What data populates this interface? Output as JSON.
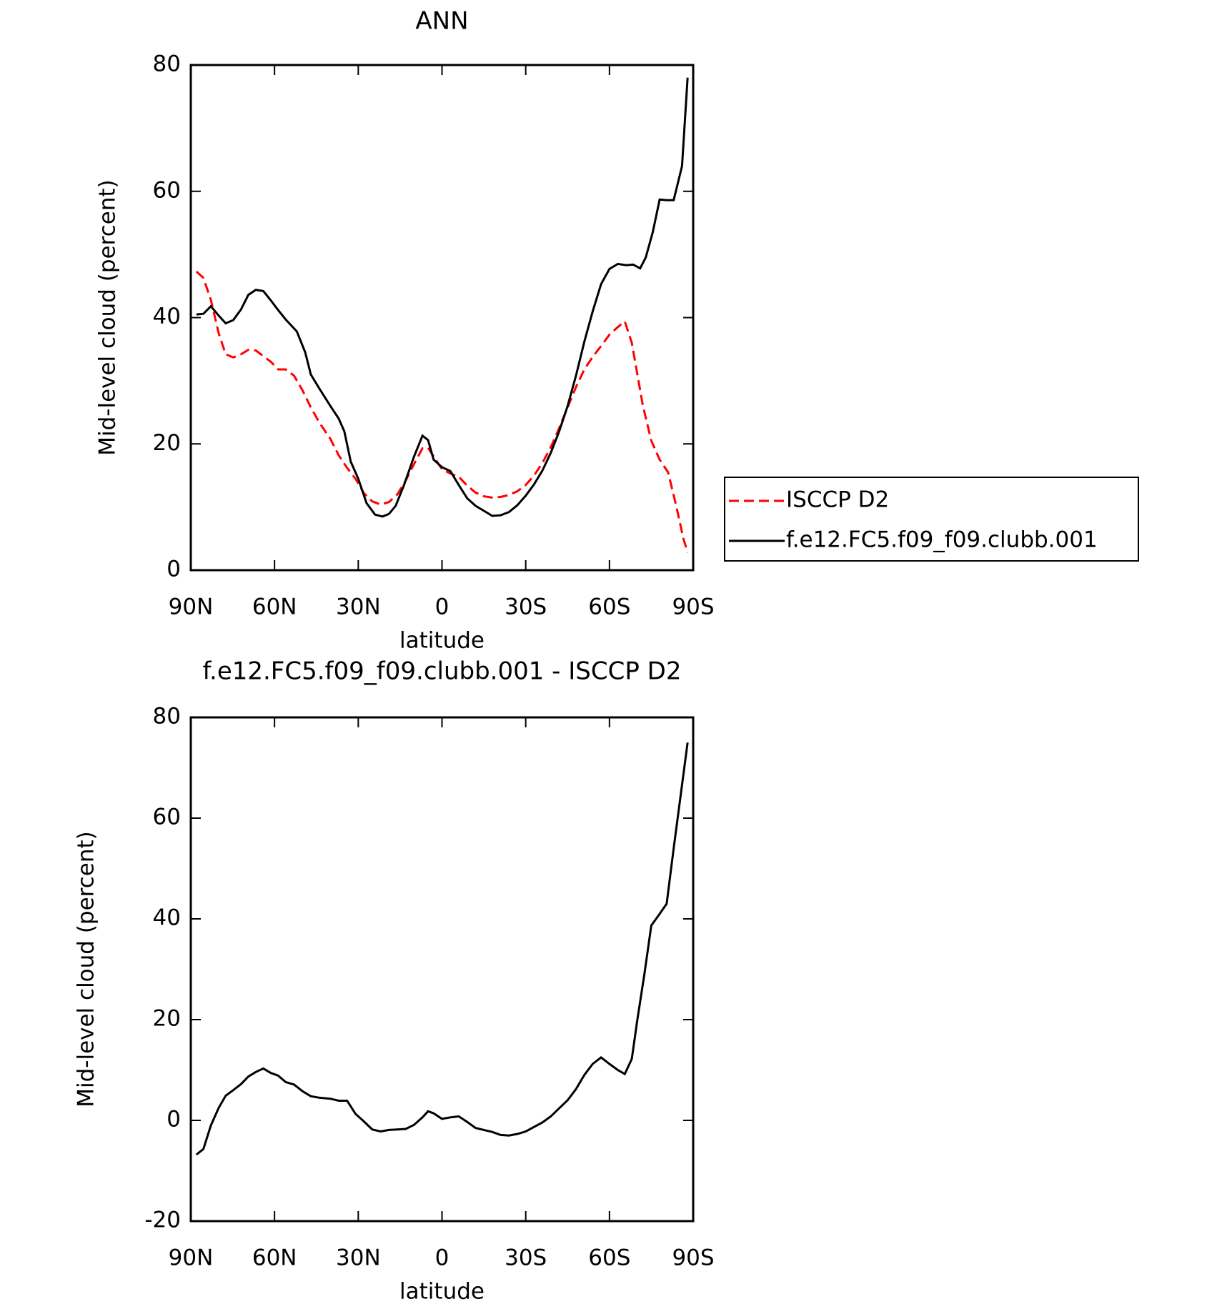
{
  "chart_data": [
    {
      "type": "line",
      "title": "ANN",
      "xlabel": "latitude",
      "ylabel": "Mid-level cloud (percent)",
      "xlim": [
        90,
        -90
      ],
      "xticks": [
        {
          "value": 90,
          "label": "90N"
        },
        {
          "value": 60,
          "label": "60N"
        },
        {
          "value": 30,
          "label": "30N"
        },
        0,
        {
          "value": -30,
          "label": "30S"
        },
        {
          "value": -60,
          "label": "60S"
        },
        {
          "value": -90,
          "label": "90S"
        }
      ],
      "ylim": [
        0,
        80
      ],
      "yticks": [
        0,
        20,
        40,
        60,
        80
      ],
      "legend": "right",
      "series": [
        {
          "name": "ISCCP D2",
          "color": "#ff0000",
          "dash": "dashed",
          "x": [
            88,
            85.5,
            82.8,
            80,
            77.5,
            74.8,
            72,
            69.4,
            66.7,
            64,
            61.3,
            58.7,
            56,
            53,
            50,
            47,
            44,
            40,
            37,
            34,
            31,
            28,
            25,
            22,
            19,
            16,
            13,
            10,
            7,
            5,
            3,
            0,
            -3,
            -6,
            -9,
            -12,
            -15,
            -18,
            -21,
            -24,
            -27,
            -30,
            -33,
            -36,
            -39,
            -42,
            -45,
            -48,
            -51,
            -54,
            -57,
            -60,
            -63,
            -65.5,
            -68,
            -70,
            -72,
            -75,
            -78,
            -81,
            -84,
            -86.5,
            -88
          ],
          "values": [
            47.3,
            46.3,
            42.8,
            37.5,
            34.2,
            33.7,
            34.2,
            34.9,
            34.8,
            33.9,
            33.0,
            31.8,
            31.8,
            30.8,
            28.5,
            25.8,
            23.4,
            20.8,
            18.2,
            16.2,
            14.5,
            12.2,
            10.9,
            10.4,
            10.8,
            12.0,
            14.2,
            16.8,
            19.3,
            19.4,
            18.0,
            16.0,
            15.3,
            14.8,
            13.4,
            12.3,
            11.7,
            11.5,
            11.6,
            11.9,
            12.5,
            13.5,
            15.0,
            17.0,
            19.5,
            22.5,
            25.8,
            29.0,
            31.8,
            33.8,
            35.5,
            37.3,
            38.5,
            39.4,
            36.0,
            31.0,
            26.0,
            20.5,
            17.5,
            15.5,
            10.0,
            5.0,
            2.8
          ]
        },
        {
          "name": "f.e12.FC5.f09_f09.clubb.001",
          "color": "#000000",
          "dash": "solid",
          "x": [
            88,
            85.5,
            82.8,
            80,
            77.5,
            74.8,
            72,
            69.4,
            66.7,
            64,
            61.3,
            58.7,
            56,
            52,
            49,
            47,
            44,
            40,
            37,
            35,
            32.7,
            30,
            27,
            24,
            21.3,
            19,
            16.6,
            13.6,
            10,
            7,
            5,
            3,
            0,
            -3,
            -6,
            -9,
            -12,
            -15,
            -18,
            -21,
            -24,
            -27,
            -30,
            -33,
            -36,
            -39,
            -42,
            -45,
            -48,
            -51,
            -54,
            -57,
            -60,
            -63,
            -66,
            -68.5,
            -71,
            -73,
            -75.5,
            -78,
            -80.5,
            -83,
            -86,
            -88
          ],
          "values": [
            40.5,
            40.6,
            41.8,
            40.3,
            39.1,
            39.6,
            41.3,
            43.6,
            44.4,
            44.2,
            42.7,
            41.2,
            39.7,
            37.8,
            34.5,
            31.0,
            28.8,
            26.0,
            24.0,
            22.0,
            17.2,
            14.5,
            10.6,
            8.8,
            8.5,
            8.9,
            10.2,
            13.5,
            18.0,
            21.3,
            20.6,
            17.5,
            16.3,
            15.7,
            13.5,
            11.4,
            10.2,
            9.4,
            8.6,
            8.7,
            9.2,
            10.3,
            11.8,
            13.6,
            15.8,
            18.6,
            22.0,
            26.0,
            30.8,
            36.2,
            41.0,
            45.3,
            47.7,
            48.5,
            48.3,
            48.4,
            47.8,
            49.5,
            53.5,
            58.7,
            58.6,
            58.6,
            64.0,
            78.0
          ]
        }
      ]
    },
    {
      "type": "line",
      "title": "f.e12.FC5.f09_f09.clubb.001 - ISCCP D2",
      "xlabel": "latitude",
      "ylabel": "Mid-level cloud (percent)",
      "xlim": [
        90,
        -90
      ],
      "xticks": [
        {
          "value": 90,
          "label": "90N"
        },
        {
          "value": 60,
          "label": "60N"
        },
        {
          "value": 30,
          "label": "30N"
        },
        0,
        {
          "value": -30,
          "label": "30S"
        },
        {
          "value": -60,
          "label": "60S"
        },
        {
          "value": -90,
          "label": "90S"
        }
      ],
      "ylim": [
        -20,
        80
      ],
      "yticks": [
        -20,
        0,
        20,
        40,
        60,
        80
      ],
      "series": [
        {
          "color": "#000000",
          "dash": "solid",
          "x": [
            88,
            85.5,
            82.8,
            80,
            77.5,
            74.8,
            72,
            69.4,
            66.7,
            64,
            61.3,
            58.7,
            56,
            53,
            50,
            47,
            44,
            40,
            37,
            34,
            31,
            28,
            25,
            22,
            19,
            16,
            13,
            10,
            7,
            5,
            3,
            0,
            -3,
            -6,
            -9,
            -12,
            -15,
            -18,
            -21,
            -24,
            -27,
            -30,
            -33,
            -36,
            -39,
            -42,
            -45,
            -48,
            -51,
            -54,
            -57,
            -60,
            -63,
            -65.5,
            -68,
            -70,
            -72.5,
            -75,
            -78,
            -80.5,
            -83,
            -88
          ],
          "values": [
            -6.8,
            -5.7,
            -1.0,
            2.5,
            4.9,
            6.0,
            7.2,
            8.7,
            9.6,
            10.3,
            9.4,
            8.9,
            7.6,
            7.1,
            5.8,
            4.8,
            4.5,
            4.3,
            3.9,
            3.9,
            1.3,
            -0.2,
            -1.8,
            -2.2,
            -1.9,
            -1.8,
            -1.7,
            -0.9,
            0.6,
            1.8,
            1.4,
            0.3,
            0.6,
            0.8,
            -0.3,
            -1.5,
            -1.9,
            -2.3,
            -2.9,
            -3.0,
            -2.7,
            -2.2,
            -1.3,
            -0.4,
            0.8,
            2.4,
            4.0,
            6.2,
            9.0,
            11.2,
            12.5,
            11.2,
            10.0,
            9.2,
            12.2,
            20.0,
            29.0,
            38.7,
            41.0,
            43.0,
            54.0,
            75.0
          ]
        }
      ]
    }
  ]
}
